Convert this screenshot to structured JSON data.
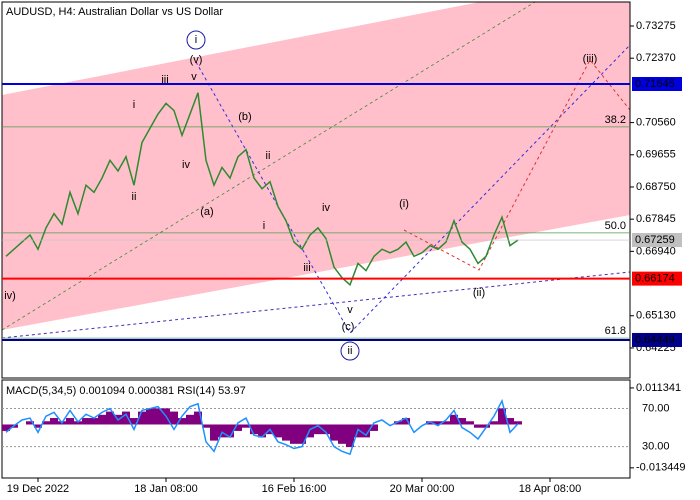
{
  "chart_data": [
    {
      "type": "line",
      "title": "AUDUSD, H4:  Australian Dollar vs US Dollar",
      "categories": [
        null,
        null,
        null,
        null,
        "19 Dec 2022",
        null,
        null,
        null,
        null,
        null,
        null,
        null,
        null,
        null,
        null,
        null,
        null,
        null,
        null,
        null,
        "18 Jan 08:00",
        null,
        null,
        null,
        null,
        null,
        null,
        null,
        null,
        null,
        null,
        null,
        null,
        null,
        null,
        null,
        "16 Feb 16:00",
        null,
        null,
        null,
        null,
        null,
        null,
        null,
        null,
        null,
        null,
        null,
        null,
        null,
        null,
        null,
        "20 Mar 00:00",
        null,
        null,
        null,
        null,
        null,
        null,
        null,
        null,
        null,
        null,
        null,
        null,
        null,
        null,
        null,
        "18 Apr 08:00"
      ],
      "series": [
        {
          "name": "AUDUSD",
          "color": "#2f8a2f",
          "values": [
            0.668,
            0.67,
            0.672,
            0.674,
            0.67,
            0.676,
            0.68,
            0.677,
            0.686,
            0.68,
            0.688,
            0.686,
            0.69,
            0.695,
            0.692,
            0.696,
            0.688,
            0.7,
            0.704,
            0.708,
            0.711,
            0.709,
            0.702,
            0.708,
            0.714,
            0.695,
            0.688,
            0.693,
            0.69,
            0.696,
            0.698,
            0.69,
            0.687,
            0.689,
            0.682,
            0.678,
            0.672,
            0.67,
            0.674,
            0.676,
            0.673,
            0.665,
            0.662,
            0.66,
            0.666,
            0.664,
            0.668,
            0.67,
            0.669,
            0.67,
            0.672,
            0.668,
            0.669,
            0.671,
            0.67,
            0.672,
            0.678,
            0.672,
            0.67,
            0.666,
            0.668,
            0.674,
            0.679,
            0.671,
            0.6726,
            null,
            null,
            null,
            null
          ]
        }
      ],
      "ylim": [
        0.6338,
        0.7395
      ],
      "yticks": [
        0.73275,
        {
          "value": 0.7237,
          "label": "0.72370"
        },
        {
          "value": 0.7056,
          "label": "0.70560"
        },
        0.69655,
        {
          "value": 0.6875,
          "label": "0.68750"
        },
        0.67845,
        {
          "value": 0.6694,
          "label": "0.66940"
        },
        {
          "value": 0.6513,
          "label": "0.65130"
        },
        0.64225
      ],
      "levels": [
        {
          "value": 0.71645,
          "label": "0.71645",
          "color": "#0000dd"
        },
        {
          "value": 0.66174,
          "label": "0.66174",
          "color": "#ff0000"
        },
        {
          "value": 0.64449,
          "label": "0.64449",
          "color": "#00008b"
        }
      ],
      "current": {
        "value": 0.67259,
        "label": "0.67259",
        "color": "#c0c0c0"
      },
      "fib": [
        {
          "value": 0.7044,
          "label": "38.2"
        },
        {
          "value": 0.6746,
          "label": "50.0"
        },
        {
          "value": 0.645,
          "label": "61.8"
        }
      ],
      "annotations": [
        {
          "text": "i",
          "color": "#1a1aa6",
          "circled": true
        },
        {
          "text": "(v)",
          "color": "#e03030"
        },
        {
          "text": "iii",
          "color": "#808080"
        },
        {
          "text": "v",
          "color": "#808080"
        },
        {
          "text": "i",
          "color": "#808080"
        },
        {
          "text": "iv",
          "color": "#808080"
        },
        {
          "text": "ii",
          "color": "#808080"
        },
        {
          "text": "(b)",
          "color": "#e03030"
        },
        {
          "text": "ii",
          "color": "#808080"
        },
        {
          "text": "(a)",
          "color": "#e03030"
        },
        {
          "text": "i",
          "color": "#808080"
        },
        {
          "text": "iv",
          "color": "#808080"
        },
        {
          "text": "iii",
          "color": "#808080"
        },
        {
          "text": "v",
          "color": "#808080"
        },
        {
          "text": "(c)",
          "color": "#e03030"
        },
        {
          "text": "ii",
          "color": "#1a1aa6",
          "circled": true
        },
        {
          "text": "(i)",
          "color": "#e03030"
        },
        {
          "text": "(ii)",
          "color": "#e03030"
        },
        {
          "text": "(iii)",
          "color": "#e03030"
        },
        {
          "text": "iv)",
          "color": "#e03030"
        }
      ]
    },
    {
      "type": "bar",
      "title": "MACD(5,34,5) 0.001094 0.000381 RSI(14) 53.97",
      "series": [
        {
          "name": "MACD",
          "color": "#800080",
          "values": [
            -0.002,
            -0.001,
            0.0,
            0.001,
            -0.001,
            0.001,
            0.002,
            0.001,
            0.002,
            0.001,
            0.002,
            0.002,
            0.003,
            0.004,
            0.003,
            0.004,
            0.002,
            0.004,
            0.005,
            0.005,
            0.005,
            0.004,
            0.002,
            0.003,
            0.004,
            -0.001,
            -0.005,
            -0.004,
            -0.004,
            -0.002,
            -0.001,
            -0.003,
            -0.004,
            -0.003,
            -0.004,
            -0.005,
            -0.006,
            -0.006,
            -0.004,
            -0.003,
            -0.003,
            -0.005,
            -0.006,
            -0.007,
            -0.004,
            -0.004,
            -0.002,
            0.0,
            0.0,
            0.001,
            0.002,
            0.0,
            0.0,
            0.001,
            0.001,
            0.001,
            0.003,
            0.002,
            0.001,
            -0.001,
            -0.001,
            0.001,
            0.005,
            0.002,
            0.001,
            null,
            null,
            null,
            null
          ]
        },
        {
          "name": "RSI",
          "color": "#1e90ff",
          "axis": "y2",
          "values": [
            45,
            52,
            58,
            60,
            45,
            62,
            66,
            55,
            68,
            56,
            64,
            60,
            66,
            70,
            58,
            64,
            48,
            68,
            70,
            72,
            62,
            48,
            62,
            72,
            75,
            35,
            25,
            45,
            40,
            55,
            60,
            42,
            40,
            48,
            35,
            32,
            28,
            30,
            48,
            52,
            45,
            30,
            25,
            22,
            48,
            42,
            55,
            58,
            52,
            56,
            60,
            45,
            52,
            56,
            52,
            58,
            68,
            50,
            45,
            38,
            50,
            62,
            78,
            45,
            54,
            null,
            null,
            null,
            null
          ]
        }
      ],
      "ylim": [
        -0.0166,
        0.0138
      ],
      "yticks": [
        0.011341,
        -0.013449
      ],
      "y2lim": [
        -3,
        100
      ],
      "y2ticks": [
        {
          "value": 70,
          "label": "70.00"
        },
        {
          "value": 30,
          "label": "30.00"
        }
      ],
      "grid": true
    }
  ]
}
